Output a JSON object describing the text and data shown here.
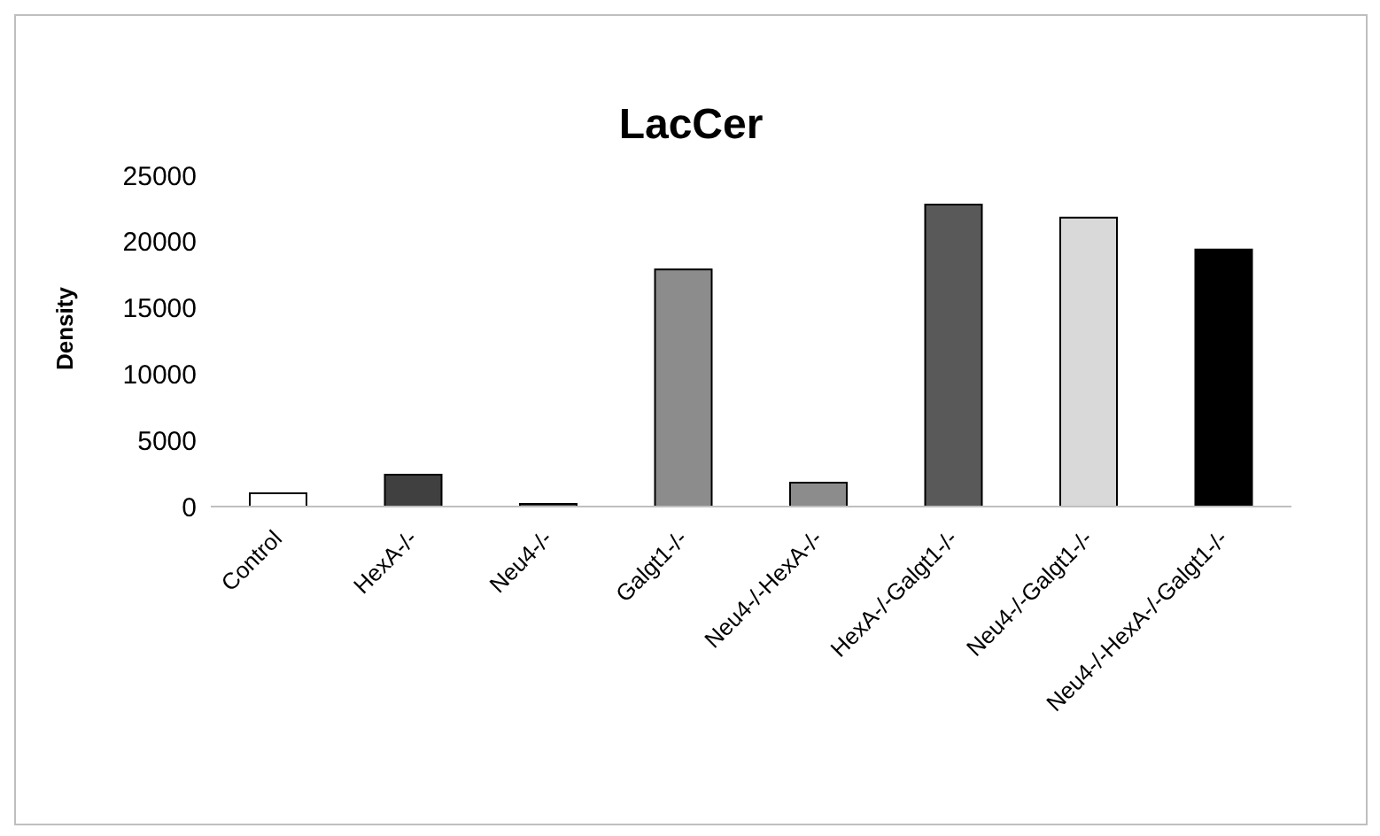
{
  "chart_data": {
    "type": "bar",
    "title": "LacCer",
    "ylabel": "Density",
    "categories": [
      "Control",
      "HexA-/-",
      "Neu4-/-",
      "Galgt1-/-",
      "Neu4-/-HexA-/-",
      "HexA-/-Galgt1-/-",
      "Neu4-/-Galgt1-/-",
      "Neu4-/-HexA-/-Galgt1-/-"
    ],
    "values": [
      1000,
      2400,
      200,
      17900,
      1800,
      22800,
      21800,
      19400
    ],
    "colors": [
      "#ffffff",
      "#404040",
      "#404040",
      "#8c8c8c",
      "#8c8c8c",
      "#595959",
      "#d9d9d9",
      "#000000"
    ],
    "ylim": [
      0,
      25000
    ],
    "yticks": [
      0,
      5000,
      10000,
      15000,
      20000,
      25000
    ],
    "grid": false,
    "legend": false
  }
}
